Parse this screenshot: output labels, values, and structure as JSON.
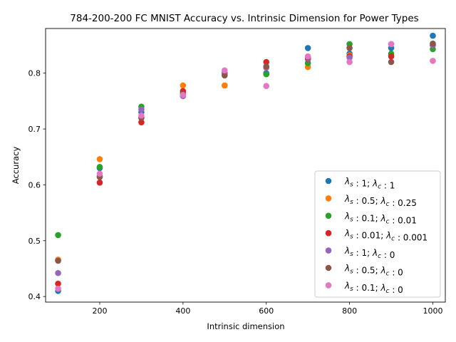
{
  "chart_data": {
    "type": "scatter",
    "title": "784-200-200 FC MNIST Accuracy vs. Intrinsic Dimension for Power Types",
    "xlabel": "Intrinsic dimension",
    "ylabel": "Accuracy",
    "xlim": [
      70,
      1030
    ],
    "ylim": [
      0.39,
      0.88
    ],
    "xticks": [
      200,
      400,
      600,
      800,
      1000
    ],
    "yticks": [
      0.4,
      0.5,
      0.6,
      0.7,
      0.8
    ],
    "grid": false,
    "legend_position": "lower-right",
    "series": [
      {
        "name": "λs:1;λc:1",
        "ls": "1",
        "lc": "1",
        "color": "#1f77b4",
        "points": [
          [
            100,
            0.41
          ],
          [
            200,
            0.63
          ],
          [
            300,
            0.73
          ],
          [
            400,
            0.76
          ],
          [
            500,
            0.8
          ],
          [
            600,
            0.8
          ],
          [
            700,
            0.845
          ],
          [
            800,
            0.835
          ],
          [
            900,
            0.845
          ],
          [
            1000,
            0.867
          ]
        ]
      },
      {
        "name": "λs:0.5;λc:0.25",
        "ls": "0.5",
        "lc": "0.25",
        "color": "#ff7f0e",
        "points": [
          [
            100,
            0.466
          ],
          [
            200,
            0.646
          ],
          [
            300,
            0.72
          ],
          [
            400,
            0.778
          ],
          [
            500,
            0.778
          ],
          [
            600,
            0.81
          ],
          [
            700,
            0.811
          ],
          [
            800,
            0.832
          ],
          [
            900,
            0.832
          ],
          [
            1000,
            0.85
          ]
        ]
      },
      {
        "name": "λs:0.1;λc:0.01",
        "ls": "0.1",
        "lc": "0.01",
        "color": "#2ca02c",
        "points": [
          [
            100,
            0.51
          ],
          [
            200,
            0.632
          ],
          [
            300,
            0.74
          ],
          [
            400,
            0.765
          ],
          [
            500,
            0.8
          ],
          [
            600,
            0.798
          ],
          [
            700,
            0.818
          ],
          [
            800,
            0.852
          ],
          [
            900,
            0.835
          ],
          [
            1000,
            0.843
          ]
        ]
      },
      {
        "name": "λs:0.01;λc:0.001",
        "ls": "0.01",
        "lc": "0.001",
        "color": "#d62728",
        "points": [
          [
            100,
            0.423
          ],
          [
            200,
            0.604
          ],
          [
            300,
            0.712
          ],
          [
            400,
            0.768
          ],
          [
            500,
            0.8
          ],
          [
            600,
            0.82
          ],
          [
            700,
            0.825
          ],
          [
            800,
            0.83
          ],
          [
            900,
            0.83
          ],
          [
            1000,
            0.85
          ]
        ]
      },
      {
        "name": "λs:1;λc:0",
        "ls": "1",
        "lc": "0",
        "color": "#9467bd",
        "points": [
          [
            100,
            0.442
          ],
          [
            200,
            0.615
          ],
          [
            300,
            0.735
          ],
          [
            400,
            0.759
          ],
          [
            500,
            0.8
          ],
          [
            600,
            0.81
          ],
          [
            700,
            0.826
          ],
          [
            800,
            0.828
          ],
          [
            900,
            0.852
          ],
          [
            1000,
            0.85
          ]
        ]
      },
      {
        "name": "λs:0.5;λc:0",
        "ls": "0.5",
        "lc": "0",
        "color": "#8c564b",
        "points": [
          [
            100,
            0.464
          ],
          [
            200,
            0.614
          ],
          [
            300,
            0.72
          ],
          [
            400,
            0.762
          ],
          [
            500,
            0.796
          ],
          [
            600,
            0.812
          ],
          [
            700,
            0.828
          ],
          [
            800,
            0.845
          ],
          [
            900,
            0.82
          ],
          [
            1000,
            0.853
          ]
        ]
      },
      {
        "name": "λs:0.1;λc:0",
        "ls": "0.1",
        "lc": "0",
        "color": "#e377c2",
        "points": [
          [
            100,
            0.414
          ],
          [
            200,
            0.62
          ],
          [
            300,
            0.724
          ],
          [
            400,
            0.761
          ],
          [
            500,
            0.805
          ],
          [
            600,
            0.777
          ],
          [
            700,
            0.83
          ],
          [
            800,
            0.82
          ],
          [
            900,
            0.852
          ],
          [
            1000,
            0.822
          ]
        ]
      }
    ]
  }
}
